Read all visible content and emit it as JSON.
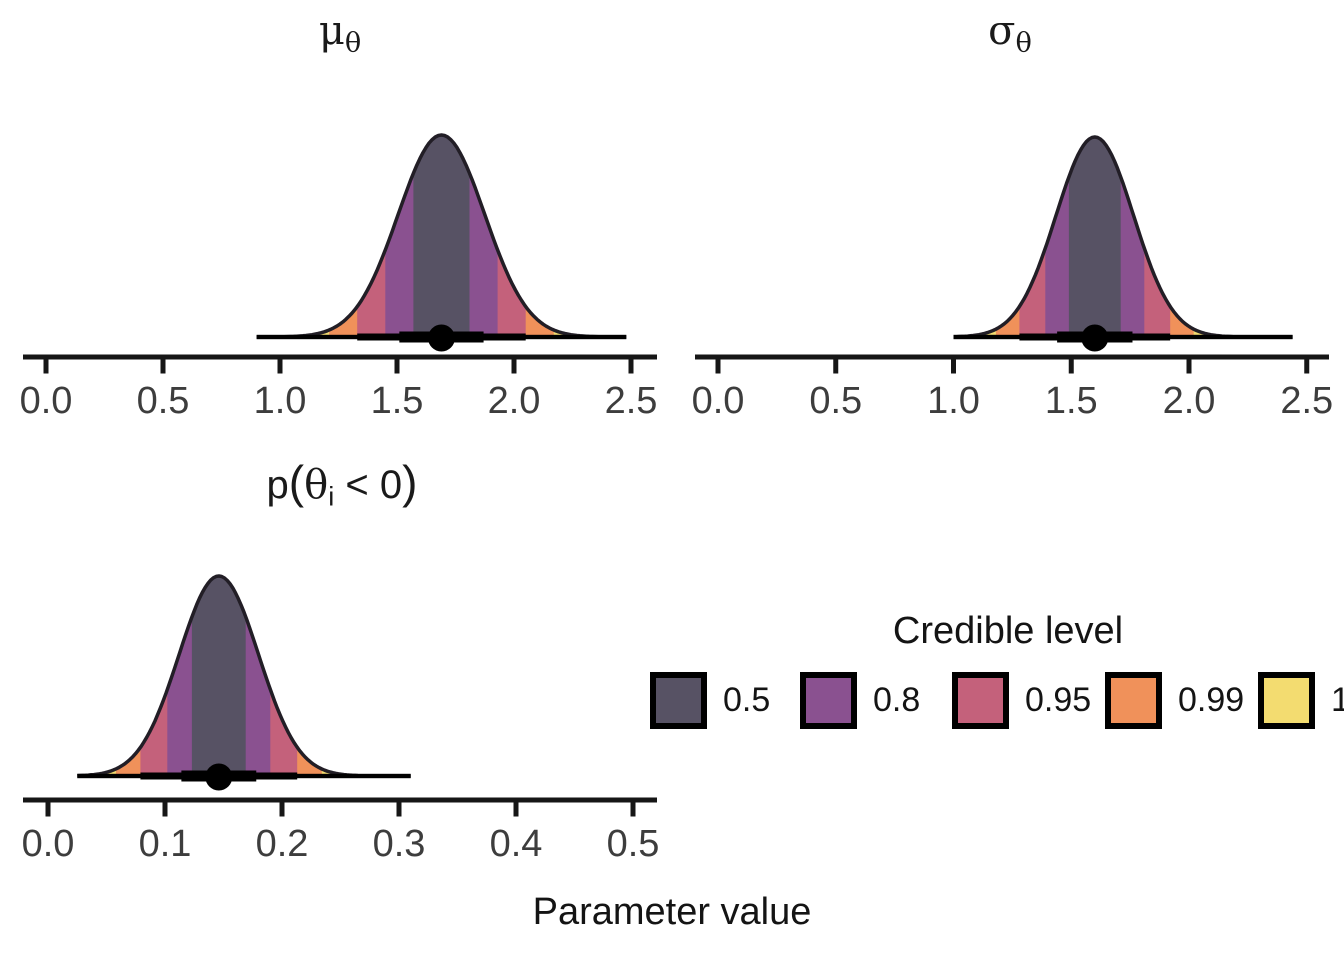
{
  "figure": {
    "xlabel": "Parameter value",
    "background_color": "#ffffff",
    "outline_color": "#221e26",
    "interval_color": "#000000",
    "axis_color": "#161616",
    "tick_label_color": "#3d3d3d"
  },
  "legend": {
    "title": "Credible level",
    "entries": [
      {
        "label": "0.5",
        "color": "#575264"
      },
      {
        "label": "0.8",
        "color": "#8a5190"
      },
      {
        "label": "0.95",
        "color": "#c4617b"
      },
      {
        "label": "0.99",
        "color": "#f0915a"
      },
      {
        "label": "1",
        "color": "#f3dc70"
      }
    ]
  },
  "chart_data": [
    {
      "type": "area",
      "id": "mu_theta",
      "title": "mu[theta]",
      "title_segments": [
        {
          "text": "μ",
          "greek": true
        },
        {
          "text": "θ",
          "greek": true,
          "sub": true
        }
      ],
      "x_ticks": [
        "0.0",
        "0.5",
        "1.0",
        "1.5",
        "2.0",
        "2.5"
      ],
      "x_range": [
        0,
        2.5
      ],
      "distribution": {
        "shape": "normal",
        "mean": 1.69,
        "sd": 0.185,
        "slab_range": [
          0.9,
          2.48
        ]
      },
      "point_estimate": 1.69,
      "interval_66": [
        1.51,
        1.87
      ],
      "interval_95": [
        1.33,
        2.05
      ],
      "credible_bands": [
        {
          "level": "0.5",
          "range": [
            1.57,
            1.81
          ]
        },
        {
          "level": "0.8",
          "range": [
            1.45,
            1.93
          ]
        },
        {
          "level": "0.95",
          "range": [
            1.33,
            2.05
          ]
        },
        {
          "level": "0.99",
          "range": [
            1.21,
            2.17
          ]
        },
        {
          "level": "1",
          "range": [
            0.9,
            2.48
          ]
        }
      ]
    },
    {
      "type": "area",
      "id": "sigma_theta",
      "title": "sigma[theta]",
      "title_segments": [
        {
          "text": "σ",
          "greek": true
        },
        {
          "text": "θ",
          "greek": true,
          "sub": true
        }
      ],
      "x_ticks": [
        "0.0",
        "0.5",
        "1.0",
        "1.5",
        "2.0",
        "2.5"
      ],
      "x_range": [
        0,
        2.5
      ],
      "distribution": {
        "shape": "normal",
        "mean": 1.6,
        "sd": 0.165,
        "slab_range": [
          1.0,
          2.44
        ]
      },
      "point_estimate": 1.6,
      "interval_66": [
        1.44,
        1.76
      ],
      "interval_95": [
        1.28,
        1.92
      ],
      "credible_bands": [
        {
          "level": "0.5",
          "range": [
            1.49,
            1.71
          ]
        },
        {
          "level": "0.8",
          "range": [
            1.39,
            1.81
          ]
        },
        {
          "level": "0.95",
          "range": [
            1.28,
            1.92
          ]
        },
        {
          "level": "0.99",
          "range": [
            1.18,
            2.02
          ]
        },
        {
          "level": "1",
          "range": [
            1.0,
            2.44
          ]
        }
      ]
    },
    {
      "type": "area",
      "id": "p_theta_lt_0",
      "title": "p(theta[i] < 0)",
      "title_segments": [
        {
          "text": "p"
        },
        {
          "text": "(",
          "paren": true
        },
        {
          "text": "θ",
          "greek": true
        },
        {
          "text": "i",
          "sub": true
        },
        {
          "text": " < 0"
        },
        {
          "text": ")",
          "paren": true
        }
      ],
      "x_ticks": [
        "0.0",
        "0.1",
        "0.2",
        "0.3",
        "0.4",
        "0.5"
      ],
      "x_range": [
        0,
        0.5
      ],
      "distribution": {
        "shape": "normal",
        "mean": 0.146,
        "sd": 0.034,
        "slab_range": [
          0.025,
          0.31
        ]
      },
      "point_estimate": 0.146,
      "interval_66": [
        0.114,
        0.178
      ],
      "interval_95": [
        0.079,
        0.213
      ],
      "credible_bands": [
        {
          "level": "0.5",
          "range": [
            0.123,
            0.169
          ]
        },
        {
          "level": "0.8",
          "range": [
            0.102,
            0.19
          ]
        },
        {
          "level": "0.95",
          "range": [
            0.079,
            0.213
          ]
        },
        {
          "level": "0.99",
          "range": [
            0.058,
            0.234
          ]
        },
        {
          "level": "1",
          "range": [
            0.025,
            0.31
          ]
        }
      ]
    }
  ]
}
